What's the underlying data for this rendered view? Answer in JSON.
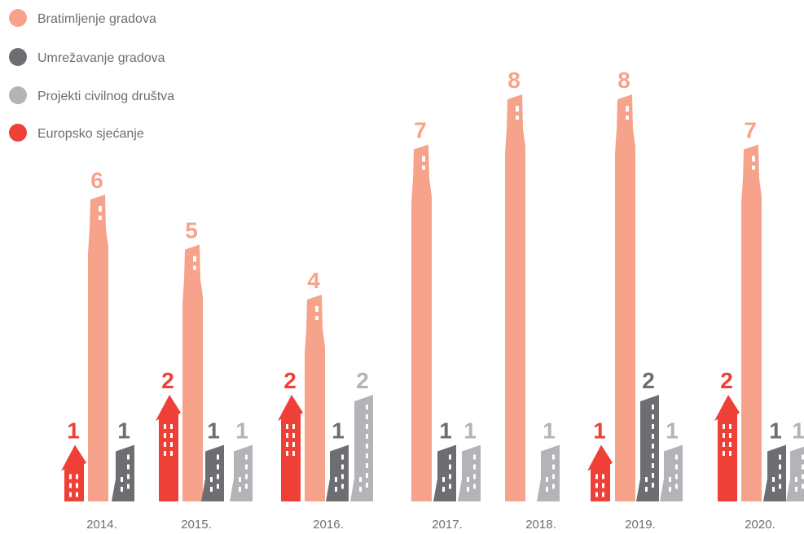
{
  "chart_data": {
    "type": "bar",
    "categories": [
      "2014.",
      "2015.",
      "2016.",
      "2017.",
      "2018.",
      "2019.",
      "2020."
    ],
    "series": [
      {
        "name": "Bratimljenje gradova",
        "color": "#F7A38C",
        "values": [
          6,
          5,
          4,
          7,
          8,
          8,
          7
        ]
      },
      {
        "name": "Umrežavanje gradova",
        "color": "#6D6E71",
        "values": [
          1,
          1,
          1,
          1,
          null,
          2,
          1
        ]
      },
      {
        "name": "Projekti civilnog društva",
        "color": "#B2B4B7",
        "values": [
          null,
          1,
          2,
          1,
          1,
          1,
          1
        ]
      },
      {
        "name": "Europsko sjećanje",
        "color": "#EE4036",
        "values": [
          1,
          2,
          2,
          null,
          null,
          1,
          2
        ]
      }
    ],
    "legend": "top-left",
    "grid": false,
    "data_labels": true
  },
  "colors": {
    "text": "#6D6E71"
  }
}
